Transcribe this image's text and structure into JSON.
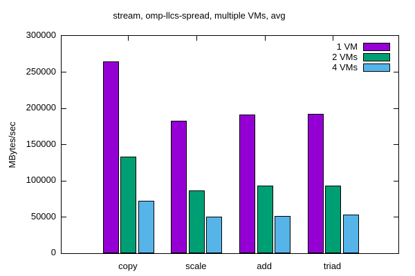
{
  "title": "stream, omp-llcs-spread, multiple VMs, avg",
  "chart_data": {
    "type": "bar",
    "title": "stream, omp-llcs-spread, multiple VMs, avg",
    "categories": [
      "copy",
      "scale",
      "add",
      "triad"
    ],
    "series": [
      {
        "name": "1 VM",
        "color": "#9400d3",
        "values": [
          265000,
          183000,
          191000,
          192000
        ]
      },
      {
        "name": "2 VMs",
        "color": "#009e73",
        "values": [
          133000,
          86500,
          93500,
          93500
        ]
      },
      {
        "name": "4 VMs",
        "color": "#56b4e9",
        "values": [
          72500,
          50000,
          51500,
          53500
        ]
      }
    ],
    "xlabel": "",
    "ylabel": "MBytes/sec",
    "ylim": [
      0,
      300000
    ],
    "yticks": [
      0,
      50000,
      100000,
      150000,
      200000,
      250000,
      300000
    ],
    "legend_position": "top-right-inside",
    "grid": false,
    "bar_border_color": "#000000",
    "background_color": "#ffffff"
  }
}
